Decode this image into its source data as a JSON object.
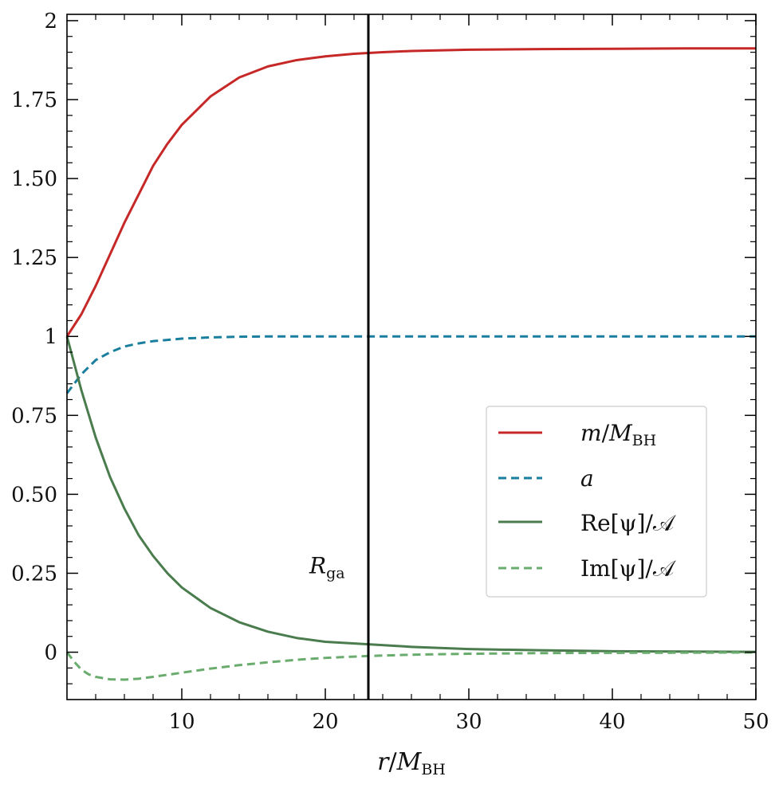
{
  "chart_data": {
    "type": "line",
    "xlabel": "r/M_BH",
    "ylabel": "",
    "xlim": [
      2,
      50
    ],
    "ylim": [
      -0.15,
      2.02
    ],
    "x_ticks": [
      10,
      20,
      30,
      40,
      50
    ],
    "y_ticks": [
      0,
      0.25,
      0.5,
      0.75,
      1,
      1.25,
      1.5,
      1.75,
      2
    ],
    "y_tick_labels": [
      "0",
      "0.25",
      "0.50",
      "0.75",
      "1",
      "1.25",
      "1.50",
      "1.75",
      "2"
    ],
    "grid": false,
    "legend_position": "center-right",
    "series": [
      {
        "name": "m/M_BH",
        "color": "#c62828",
        "style": "solid",
        "x": [
          2,
          3,
          4,
          5,
          6,
          7,
          8,
          9,
          10,
          12,
          14,
          16,
          18,
          20,
          22,
          24,
          26,
          30,
          35,
          40,
          45,
          50
        ],
        "y": [
          1.0,
          1.07,
          1.16,
          1.26,
          1.36,
          1.45,
          1.54,
          1.61,
          1.67,
          1.76,
          1.82,
          1.855,
          1.875,
          1.887,
          1.895,
          1.9,
          1.904,
          1.908,
          1.91,
          1.911,
          1.912,
          1.912
        ]
      },
      {
        "name": "a",
        "color": "#1a7f9e",
        "style": "dashed",
        "x": [
          2,
          3,
          4,
          5,
          6,
          7,
          8,
          10,
          12,
          14,
          16,
          18,
          20,
          23,
          30,
          40,
          50
        ],
        "y": [
          0.82,
          0.88,
          0.925,
          0.95,
          0.968,
          0.978,
          0.985,
          0.993,
          0.997,
          0.999,
          1.0,
          1.0,
          1.0,
          1.0,
          1.0,
          1.0,
          1.0
        ]
      },
      {
        "name": "Re[ψ]/𝒜",
        "color": "#4a7c4e",
        "style": "solid",
        "x": [
          2,
          3,
          4,
          5,
          6,
          7,
          8,
          9,
          10,
          12,
          14,
          16,
          18,
          20,
          23,
          26,
          30,
          35,
          40,
          45,
          50
        ],
        "y": [
          1.0,
          0.83,
          0.68,
          0.555,
          0.455,
          0.37,
          0.305,
          0.25,
          0.205,
          0.14,
          0.095,
          0.065,
          0.045,
          0.033,
          0.025,
          0.017,
          0.01,
          0.006,
          0.003,
          0.002,
          0.001
        ]
      },
      {
        "name": "Im[ψ]/𝒜",
        "color": "#6aab6e",
        "style": "dashed",
        "x": [
          2,
          2.5,
          3,
          3.5,
          4,
          5,
          6,
          7,
          8,
          10,
          12,
          14,
          16,
          18,
          20,
          23,
          26,
          30,
          35,
          40,
          50
        ],
        "y": [
          0.0,
          -0.03,
          -0.055,
          -0.07,
          -0.078,
          -0.086,
          -0.087,
          -0.084,
          -0.078,
          -0.065,
          -0.052,
          -0.041,
          -0.032,
          -0.024,
          -0.018,
          -0.012,
          -0.008,
          -0.005,
          -0.003,
          -0.002,
          -0.001
        ]
      }
    ],
    "vline": {
      "x": 23,
      "color": "#000000",
      "label": "R_ga"
    }
  },
  "text": {
    "xlabel_main": "r",
    "xlabel_slash": "/",
    "xlabel_M": "M",
    "xlabel_sub": "BH",
    "annot_main": "R",
    "annot_sub": "ga",
    "legend_m_main": "m",
    "legend_m_slash": "/",
    "legend_m_M": "M",
    "legend_m_sub": "BH",
    "legend_a": "a",
    "legend_re": "Re[ψ]/𝒜",
    "legend_im": "Im[ψ]/𝒜"
  }
}
